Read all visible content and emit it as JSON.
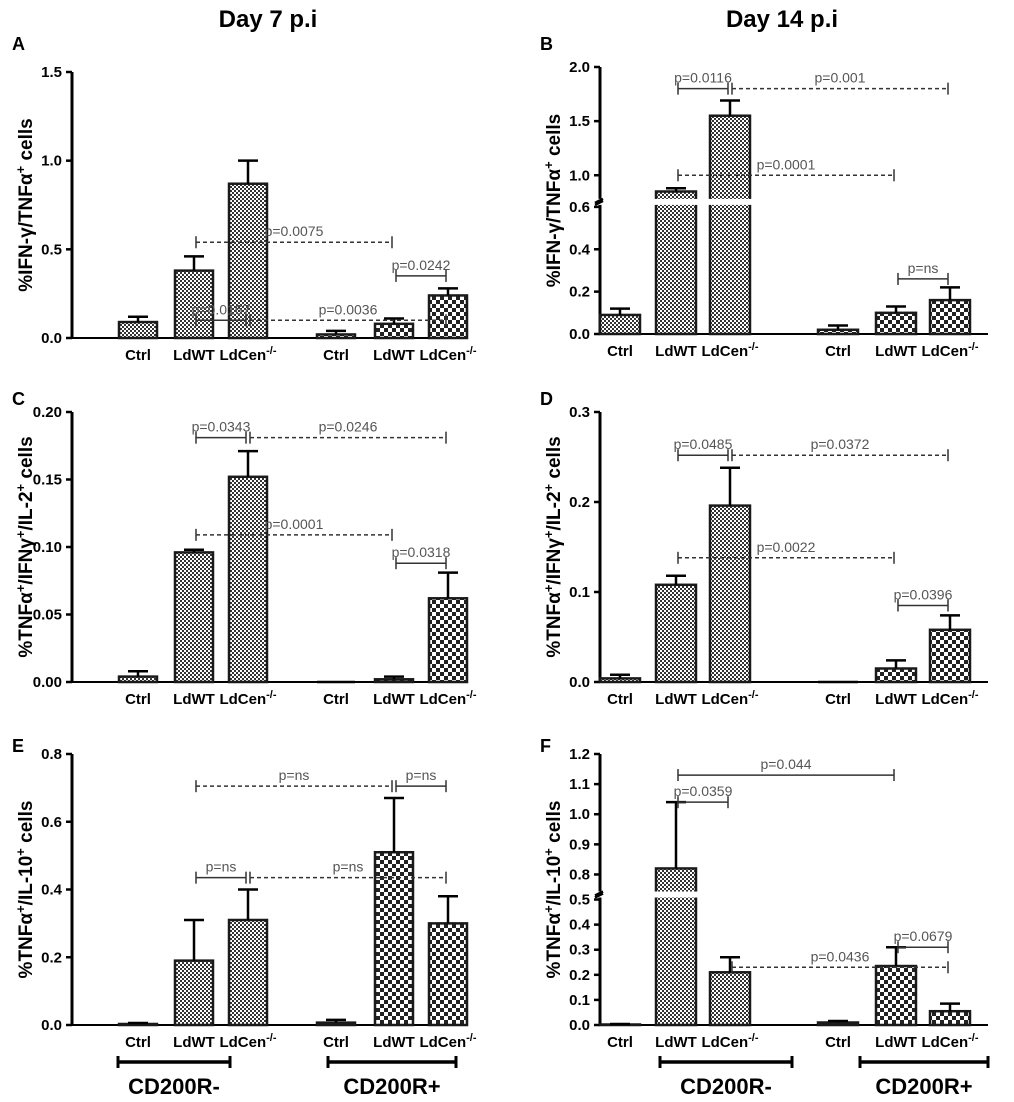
{
  "titles": {
    "left": "Day 7 p.i",
    "right": "Day 14 p.i"
  },
  "groups": {
    "left": "CD200R-",
    "right": "CD200R+"
  },
  "category_labels": [
    "Ctrl",
    "LdWT",
    "LdCen",
    "Ctrl",
    "LdWT",
    "LdCen"
  ],
  "ldcen_superscript": "-/-",
  "colors": {
    "axis": "#000000",
    "bar_stroke": "#1a1a1a",
    "pvalue": "#555555",
    "background": "#ffffff"
  },
  "chart_data": [
    {
      "id": "A",
      "type": "bar",
      "panel_label": "A",
      "title": "Day 7 p.i",
      "ylabel": [
        "%IFN-γ/TNFα",
        "+",
        " cells"
      ],
      "ylim": [
        0,
        1.5
      ],
      "yticks": [
        "0.0",
        "0.5",
        "1.0",
        "1.5"
      ],
      "categories": [
        "Ctrl",
        "LdWT",
        "LdCen-/-",
        "Ctrl",
        "LdWT",
        "LdCen-/-"
      ],
      "groups": [
        "CD200R-",
        "CD200R-",
        "CD200R-",
        "CD200R+",
        "CD200R+",
        "CD200R+"
      ],
      "values": [
        0.09,
        0.38,
        0.87,
        0.02,
        0.08,
        0.24
      ],
      "errors": [
        0.03,
        0.08,
        0.13,
        0.02,
        0.03,
        0.04
      ],
      "comparisons": [
        {
          "label": "p=0.0167",
          "from": 1,
          "to": 2,
          "level": 0.1,
          "style": "solid"
        },
        {
          "label": "p=0.0036",
          "from": 2,
          "to": 5,
          "level": 0.1,
          "style": "dashed"
        },
        {
          "label": "p=0.0075",
          "from": 1,
          "to": 4,
          "level": 0.54,
          "style": "dashed"
        },
        {
          "label": "p=0.0242",
          "from": 4,
          "to": 5,
          "level": 0.35,
          "style": "solid"
        }
      ]
    },
    {
      "id": "B",
      "type": "bar",
      "panel_label": "B",
      "title": "Day 14 p.i",
      "ylabel": [
        "%IFN-γ/TNFα",
        "+",
        " cells"
      ],
      "ylim": [
        0,
        2.0
      ],
      "axis_break": [
        0.6,
        0.8
      ],
      "yticks": [
        "0.0",
        "0.2",
        "0.4",
        "0.6",
        "1.0",
        "1.5",
        "2.0"
      ],
      "categories": [
        "Ctrl",
        "LdWT",
        "LdCen-/-",
        "Ctrl",
        "LdWT",
        "LdCen-/-"
      ],
      "groups": [
        "CD200R-",
        "CD200R-",
        "CD200R-",
        "CD200R+",
        "CD200R+",
        "CD200R+"
      ],
      "values": [
        0.09,
        0.85,
        1.55,
        0.02,
        0.1,
        0.16
      ],
      "errors": [
        0.03,
        0.03,
        0.14,
        0.02,
        0.03,
        0.06
      ],
      "comparisons": [
        {
          "label": "p=0.0116",
          "from": 1,
          "to": 2,
          "level": 1.8,
          "style": "solid"
        },
        {
          "label": "p=0.001",
          "from": 2,
          "to": 5,
          "level": 1.8,
          "style": "dashed"
        },
        {
          "label": "p=0.0001",
          "from": 1,
          "to": 4,
          "level": 1.0,
          "style": "dashed"
        },
        {
          "label": "p=ns",
          "from": 4,
          "to": 5,
          "level": 0.26,
          "style": "solid"
        }
      ]
    },
    {
      "id": "C",
      "type": "bar",
      "panel_label": "C",
      "title": "",
      "ylabel": [
        "%TNFα",
        "+",
        "/IFNγ",
        "+",
        "/IL-2",
        "+",
        " cells"
      ],
      "ylim": [
        0,
        0.2
      ],
      "yticks": [
        "0.00",
        "0.05",
        "0.10",
        "0.15",
        "0.20"
      ],
      "categories": [
        "Ctrl",
        "LdWT",
        "LdCen-/-",
        "Ctrl",
        "LdWT",
        "LdCen-/-"
      ],
      "groups": [
        "CD200R-",
        "CD200R-",
        "CD200R-",
        "CD200R+",
        "CD200R+",
        "CD200R+"
      ],
      "values": [
        0.004,
        0.096,
        0.152,
        0.0,
        0.002,
        0.062
      ],
      "errors": [
        0.004,
        0.002,
        0.019,
        0.0,
        0.002,
        0.019
      ],
      "comparisons": [
        {
          "label": "p=0.0343",
          "from": 1,
          "to": 2,
          "level": 0.181,
          "style": "solid"
        },
        {
          "label": "p=0.0246",
          "from": 2,
          "to": 5,
          "level": 0.181,
          "style": "dashed"
        },
        {
          "label": "p=0.0001",
          "from": 1,
          "to": 4,
          "level": 0.109,
          "style": "dashed"
        },
        {
          "label": "p=0.0318",
          "from": 4,
          "to": 5,
          "level": 0.088,
          "style": "solid"
        }
      ]
    },
    {
      "id": "D",
      "type": "bar",
      "panel_label": "D",
      "title": "",
      "ylabel": [
        "%TNFα",
        "+",
        "/IFNγ",
        "+",
        "/IL-2",
        "+",
        " cells"
      ],
      "ylim": [
        0,
        0.3
      ],
      "yticks": [
        "0.0",
        "0.1",
        "0.2",
        "0.3"
      ],
      "categories": [
        "Ctrl",
        "LdWT",
        "LdCen-/-",
        "Ctrl",
        "LdWT",
        "LdCen-/-"
      ],
      "groups": [
        "CD200R-",
        "CD200R-",
        "CD200R-",
        "CD200R+",
        "CD200R+",
        "CD200R+"
      ],
      "values": [
        0.004,
        0.108,
        0.196,
        0.0,
        0.015,
        0.058
      ],
      "errors": [
        0.004,
        0.01,
        0.042,
        0.0,
        0.009,
        0.016
      ],
      "comparisons": [
        {
          "label": "p=0.0485",
          "from": 1,
          "to": 2,
          "level": 0.252,
          "style": "solid"
        },
        {
          "label": "p=0.0372",
          "from": 2,
          "to": 5,
          "level": 0.252,
          "style": "dashed"
        },
        {
          "label": "p=0.0022",
          "from": 1,
          "to": 4,
          "level": 0.138,
          "style": "dashed"
        },
        {
          "label": "p=0.0396",
          "from": 4,
          "to": 5,
          "level": 0.085,
          "style": "solid"
        }
      ]
    },
    {
      "id": "E",
      "type": "bar",
      "panel_label": "E",
      "title": "",
      "ylabel": [
        "%TNFα",
        "+",
        "/IL-10",
        "+",
        " cells"
      ],
      "ylim": [
        0,
        0.8
      ],
      "yticks": [
        "0.0",
        "0.2",
        "0.4",
        "0.6",
        "0.8"
      ],
      "categories": [
        "Ctrl",
        "LdWT",
        "LdCen-/-",
        "Ctrl",
        "LdWT",
        "LdCen-/-"
      ],
      "groups": [
        "CD200R-",
        "CD200R-",
        "CD200R-",
        "CD200R+",
        "CD200R+",
        "CD200R+"
      ],
      "values": [
        0.003,
        0.19,
        0.31,
        0.007,
        0.51,
        0.3
      ],
      "errors": [
        0.003,
        0.12,
        0.09,
        0.008,
        0.16,
        0.08
      ],
      "comparisons": [
        {
          "label": "p=ns",
          "from": 1,
          "to": 4,
          "level": 0.705,
          "style": "dashed"
        },
        {
          "label": "p=ns",
          "from": 4,
          "to": 5,
          "level": 0.705,
          "style": "solid"
        },
        {
          "label": "p=ns",
          "from": 1,
          "to": 2,
          "level": 0.435,
          "style": "solid"
        },
        {
          "label": "p=ns",
          "from": 2,
          "to": 5,
          "level": 0.435,
          "style": "dashed"
        }
      ]
    },
    {
      "id": "F",
      "type": "bar",
      "panel_label": "F",
      "title": "",
      "ylabel": [
        "%TNFα",
        "+",
        "/IL-10",
        "+",
        " cells"
      ],
      "ylim": [
        0,
        1.2
      ],
      "axis_break": [
        0.5,
        0.75
      ],
      "yticks": [
        "0.0",
        "0.1",
        "0.2",
        "0.3",
        "0.4",
        "0.5",
        "0.8",
        "0.9",
        "1.0",
        "1.1",
        "1.2"
      ],
      "categories": [
        "Ctrl",
        "LdWT",
        "LdCen-/-",
        "Ctrl",
        "LdWT",
        "LdCen-/-"
      ],
      "groups": [
        "CD200R-",
        "CD200R-",
        "CD200R-",
        "CD200R+",
        "CD200R+",
        "CD200R+"
      ],
      "values": [
        0.002,
        0.82,
        0.21,
        0.01,
        0.235,
        0.055
      ],
      "errors": [
        0.002,
        0.22,
        0.06,
        0.006,
        0.075,
        0.03
      ],
      "comparisons": [
        {
          "label": "p=0.044",
          "from": 1,
          "to": 4,
          "level": 1.13,
          "style": "solid"
        },
        {
          "label": "p=0.0359",
          "from": 1,
          "to": 2,
          "level": 1.04,
          "style": "solid"
        },
        {
          "label": "p=0.0436",
          "from": 2,
          "to": 5,
          "level": 0.23,
          "style": "dashed"
        },
        {
          "label": "p=0.0679",
          "from": 4,
          "to": 5,
          "level": 0.31,
          "style": "solid"
        }
      ]
    }
  ]
}
